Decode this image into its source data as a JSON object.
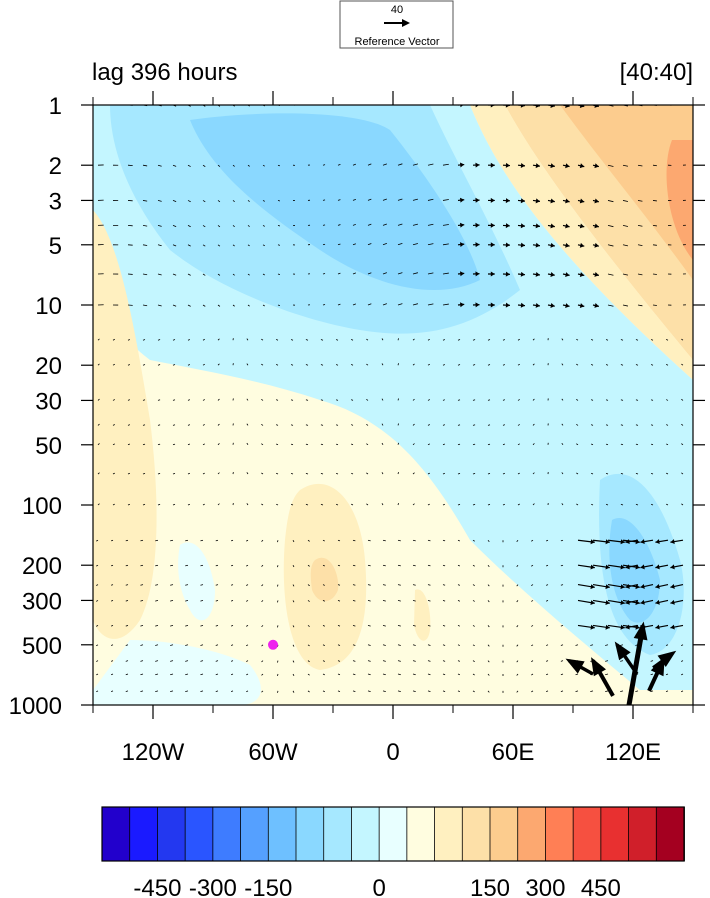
{
  "chart_data": {
    "type": "heatmap",
    "subtype": "longitude-pressure cross-section, filled contours with wind vectors",
    "title_left": "lag 396 hours",
    "title_right": "[40:40]",
    "reference_vector": {
      "value_label": "40",
      "label": "Reference Vector"
    },
    "x_axis": {
      "range": [
        -150,
        150
      ],
      "ticks": [
        -120,
        -60,
        0,
        60,
        120
      ],
      "tick_labels": [
        "120W",
        "60W",
        "0",
        "60E",
        "120E"
      ],
      "minor_step": 30
    },
    "y_axis": {
      "scale": "log",
      "reversed": true,
      "range": [
        1,
        1000
      ],
      "ticks": [
        1,
        2,
        3,
        5,
        10,
        20,
        30,
        50,
        100,
        200,
        300,
        500,
        1000
      ],
      "tick_labels": [
        "1",
        "2",
        "3",
        "5",
        "10",
        "20",
        "30",
        "50",
        "100",
        "200",
        "300",
        "500",
        "1000"
      ]
    },
    "colorbar": {
      "levels": [
        -525,
        -450,
        -375,
        -300,
        -225,
        -150,
        -100,
        -50,
        -25,
        0,
        25,
        50,
        100,
        150,
        225,
        300,
        375,
        450,
        525
      ],
      "tick_values": [
        -450,
        -300,
        -150,
        0,
        150,
        300,
        450
      ],
      "tick_labels": [
        "-450",
        "-300",
        "-150",
        "0",
        "150",
        "300",
        "450"
      ],
      "colors": [
        "#2200cc",
        "#1a1aff",
        "#2338f0",
        "#2a55ff",
        "#3e7cff",
        "#55a0ff",
        "#6ec0ff",
        "#8ad8ff",
        "#a6e8ff",
        "#c4f6ff",
        "#e8ffff",
        "#fffde0",
        "#fff0c0",
        "#fde0a8",
        "#fccc8e",
        "#fca870",
        "#ff7f55",
        "#f65040",
        "#e83030",
        "#d01f2a",
        "#a40020"
      ]
    },
    "marker": {
      "lon": -60,
      "p": 500,
      "color": "#ee22ee"
    },
    "field_features": [
      {
        "lon": 10,
        "p": 7,
        "value": -150,
        "desc": "negative anomaly, upper stratosphere central"
      },
      {
        "lon": 140,
        "p": 3,
        "value": 225,
        "desc": "positive anomaly, upper stratosphere east"
      },
      {
        "lon": -35,
        "p": 250,
        "value": 100,
        "desc": "positive center, upper troposphere 35W"
      },
      {
        "lon": 120,
        "p": 300,
        "value": -150,
        "desc": "negative center, troposphere 120E"
      }
    ],
    "strong_vectors_desc": "strong flow near 120E in the lower troposphere with large upward arrows"
  }
}
